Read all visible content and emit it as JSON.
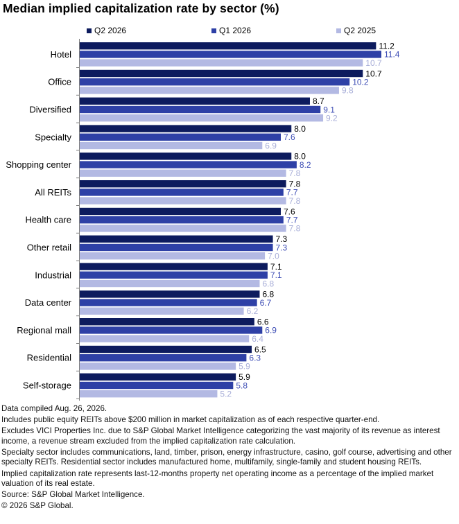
{
  "chart_data": {
    "type": "bar",
    "orientation": "horizontal",
    "title": "Median implied capitalization rate by sector (%)",
    "categories": [
      "Hotel",
      "Office",
      "Diversified",
      "Specialty",
      "Shopping center",
      "All REITs",
      "Health care",
      "Other retail",
      "Industrial",
      "Data center",
      "Regional mall",
      "Residential",
      "Self-storage"
    ],
    "series": [
      {
        "name": "Q2 2026",
        "color": "#0d1b5e",
        "label_color": "#000000",
        "values": [
          11.2,
          10.7,
          8.7,
          8.0,
          8.0,
          7.8,
          7.6,
          7.3,
          7.1,
          6.8,
          6.6,
          6.5,
          5.9
        ],
        "labels": [
          "11.2",
          "10.7",
          "8.7",
          "8.0",
          "8.0",
          "7.8",
          "7.6",
          "7.3",
          "7.1",
          "6.8",
          "6.6",
          "6.5",
          "5.9"
        ]
      },
      {
        "name": "Q1 2026",
        "color": "#2e40a6",
        "label_color": "#3d4db5",
        "values": [
          11.4,
          10.2,
          9.1,
          7.6,
          8.2,
          7.7,
          7.7,
          7.3,
          7.1,
          6.7,
          6.9,
          6.3,
          5.8
        ],
        "labels": [
          "11.4",
          "10.2",
          "9.1",
          "7.6",
          "8.2",
          "7.7",
          "7.7",
          "7.3",
          "7.1",
          "6.7",
          "6.9",
          "6.3",
          "5.8"
        ]
      },
      {
        "name": "Q2 2025",
        "color": "#b3b9e3",
        "label_color": "#a8aed8",
        "values": [
          10.7,
          9.8,
          9.2,
          6.9,
          7.8,
          7.8,
          7.8,
          7.0,
          6.8,
          6.2,
          6.4,
          5.9,
          5.2
        ],
        "labels": [
          "10.7",
          "9.8",
          "9.2",
          "6.9",
          "7.8",
          "7.8",
          "7.8",
          "7.0",
          "6.8",
          "6.2",
          "6.4",
          "5.9",
          "5.2"
        ]
      }
    ],
    "xlim": [
      0,
      11.4
    ],
    "grid": false,
    "legend_position": "top"
  },
  "notes": [
    "Data compiled Aug. 26, 2026.",
    "Includes public equity REITs above $200 million in market capitalization as of each respective quarter-end.",
    "Excludes VICI Properties Inc. due to S&P Global Market Intelligence categorizing the vast majority of its revenue as interest income, a revenue stream excluded from the implied capitalization rate calculation.",
    "Specialty sector includes communications, land, timber, prison, energy infrastructure, casino, golf course, advertising and other specialty REITs. Residential sector includes manufactured home, multifamily, single-family and student housing REITs.",
    "Implied capitalization rate represents last-12-months property net operating income as a percentage of the implied market valuation of its real estate.",
    "Source: S&P Global Market Intelligence.",
    "© 2026 S&P Global."
  ]
}
